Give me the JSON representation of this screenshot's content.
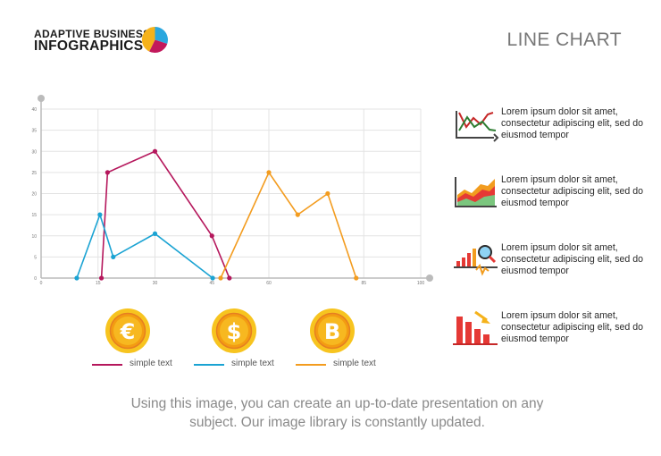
{
  "header": {
    "logo_line1": "ADAPTIVE BUSINESS",
    "logo_line2": "INFOGRAPHICS",
    "logo_icon": "pie-chart-icon",
    "title": "LINE CHART"
  },
  "chart_data": {
    "type": "line",
    "title": "",
    "xlabel": "",
    "ylabel": "",
    "xlim": [
      0,
      100
    ],
    "ylim": [
      0,
      40
    ],
    "x_ticks": [
      "0",
      "15",
      "30",
      "45",
      "60",
      "85",
      "100"
    ],
    "y_ticks": [
      "0",
      "5",
      "10",
      "15",
      "20",
      "25",
      "30",
      "35",
      "40"
    ],
    "grid": true,
    "legend": "bottom",
    "series": [
      {
        "name": "simple text",
        "color": "#b5175c",
        "x": [
          15.9,
          17.5,
          30,
          45,
          49.6
        ],
        "y": [
          0,
          25,
          30,
          10,
          0
        ]
      },
      {
        "name": "simple text",
        "color": "#1aa3d3",
        "x": [
          9.4,
          15.5,
          19,
          30,
          45.2
        ],
        "y": [
          0,
          15,
          5,
          10.5,
          0
        ]
      },
      {
        "name": "simple text",
        "color": "#f39c1f",
        "x": [
          47.3,
          60,
          67.6,
          75.5,
          83
        ],
        "y": [
          0,
          25,
          15,
          20,
          0
        ]
      }
    ]
  },
  "side_items": [
    {
      "icon": "line-chart-icon",
      "text": "Lorem ipsum dolor sit amet, consectetur adipiscing elit, sed do eiusmod tempor"
    },
    {
      "icon": "area-chart-icon",
      "text": "Lorem ipsum dolor sit amet, consectetur adipiscing elit, sed do eiusmod tempor"
    },
    {
      "icon": "magnifier-chart-icon",
      "text": "Lorem ipsum dolor sit amet, consectetur adipiscing elit, sed do eiusmod tempor"
    },
    {
      "icon": "falling-bar-chart-icon",
      "text": "Lorem ipsum dolor sit amet, consectetur adipiscing elit, sed do eiusmod tempor"
    }
  ],
  "coins": [
    {
      "icon": "euro-coin-icon",
      "symbol": "€"
    },
    {
      "icon": "dollar-coin-icon",
      "symbol": "$"
    },
    {
      "icon": "bitcoin-coin-icon",
      "symbol": "B"
    }
  ],
  "legend": [
    {
      "label": "simple text",
      "color": "#b5175c"
    },
    {
      "label": "simple text",
      "color": "#1aa3d3"
    },
    {
      "label": "simple text",
      "color": "#f39c1f"
    }
  ],
  "footer": "Using this image, you can create an up-to-date presentation on any subject. Our image library is constantly updated."
}
